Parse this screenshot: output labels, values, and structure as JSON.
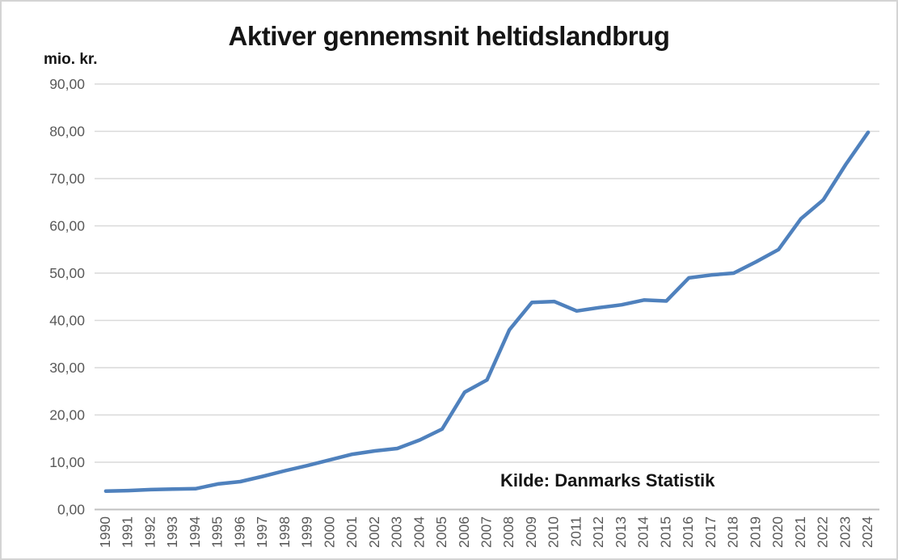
{
  "title": "Aktiver gennemsnit heltidslandbrug",
  "unit_label": "mio. kr.",
  "source_note": "Kilde: Danmarks Statistik",
  "colors": {
    "line": "#4f81bd",
    "gridline": "#d9d9d9",
    "axis_line": "#c0c0c0",
    "tick_text": "#595959",
    "title_text": "#151515"
  },
  "chart_data": {
    "type": "line",
    "title": "Aktiver gennemsnit heltidslandbrug",
    "ylabel": "mio. kr.",
    "xlabel": "",
    "ylim": [
      0,
      90
    ],
    "ytick_step": 10,
    "ytick_format": "decimal-comma-2",
    "grid": true,
    "legend": false,
    "annotation": "Kilde: Danmarks Statistik",
    "x": [
      "1990",
      "1991",
      "1992",
      "1993",
      "1994",
      "1995",
      "1996",
      "1997",
      "1998",
      "1999",
      "2000",
      "2001",
      "2002",
      "2003",
      "2004",
      "2005",
      "2006",
      "2007",
      "2008",
      "2009",
      "2010",
      "2011",
      "2012",
      "2013",
      "2014",
      "2015",
      "2016",
      "2017",
      "2018",
      "2019",
      "2020",
      "2021",
      "2022",
      "2023",
      "2024"
    ],
    "series": [
      {
        "name": "Aktiver gennemsnit heltidslandbrug (mio. kr.)",
        "values": [
          3.9,
          4.0,
          4.2,
          4.3,
          4.4,
          5.4,
          5.9,
          7.0,
          8.2,
          9.3,
          10.5,
          11.7,
          12.4,
          12.9,
          14.7,
          17.0,
          24.8,
          27.4,
          38.0,
          43.8,
          44.0,
          42.0,
          42.7,
          43.3,
          44.3,
          44.1,
          49.0,
          49.6,
          50.0,
          52.4,
          55.0,
          61.5,
          65.5,
          73.0,
          79.8
        ]
      }
    ]
  }
}
